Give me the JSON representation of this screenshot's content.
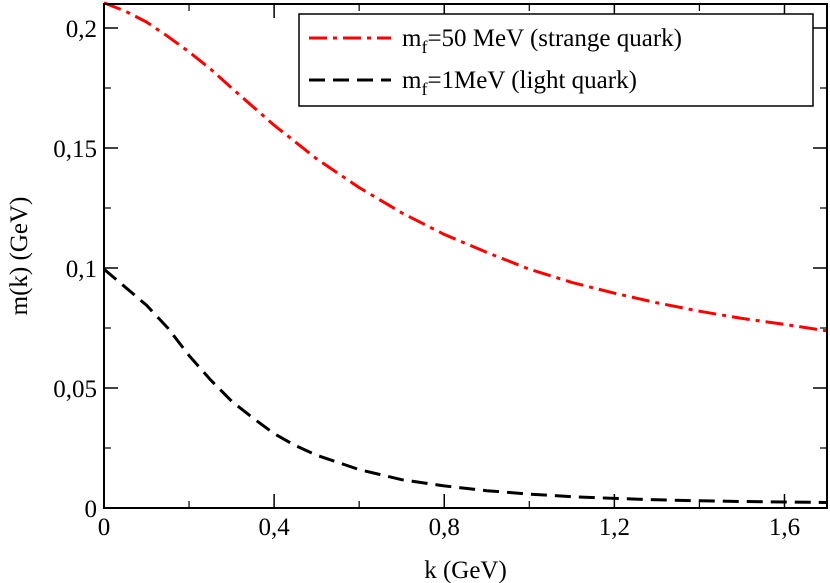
{
  "chart_data": {
    "type": "line",
    "title": "",
    "xlabel": "k (GeV)",
    "ylabel": "m(k) (GeV)",
    "xlim": [
      0,
      1.7
    ],
    "ylim": [
      0,
      0.21
    ],
    "x_ticks": [
      0,
      0.4,
      0.8,
      1.2,
      1.6
    ],
    "x_tick_labels": [
      "0",
      "0,4",
      "0,8",
      "1,2",
      "1,6"
    ],
    "y_ticks": [
      0,
      0.05,
      0.1,
      0.15,
      0.2
    ],
    "y_tick_labels": [
      "0",
      "0,05",
      "0,1",
      "0,15",
      "0,2"
    ],
    "grid": false,
    "legend_position": "top-right",
    "series": [
      {
        "name": "m_f=50 MeV (strange quark)",
        "legend_main": "m",
        "legend_sub": "f",
        "legend_rest": "=50 MeV (strange quark)",
        "color": "#ff0000",
        "style": "dashdot",
        "x": [
          0,
          0.05,
          0.1,
          0.15,
          0.2,
          0.25,
          0.3,
          0.4,
          0.5,
          0.6,
          0.7,
          0.8,
          0.9,
          1.0,
          1.1,
          1.2,
          1.3,
          1.4,
          1.5,
          1.6,
          1.7
        ],
        "y": [
          0.2105,
          0.207,
          0.2025,
          0.1965,
          0.19,
          0.183,
          0.175,
          0.1595,
          0.1455,
          0.1335,
          0.123,
          0.114,
          0.1065,
          0.0995,
          0.094,
          0.0895,
          0.0855,
          0.082,
          0.079,
          0.0765,
          0.0738
        ]
      },
      {
        "name": "m_f=1MeV (light quark)",
        "legend_main": "m",
        "legend_sub": "f",
        "legend_rest": "=1MeV (light quark)",
        "color": "#000000",
        "style": "dashed",
        "x": [
          0,
          0.02,
          0.05,
          0.1,
          0.15,
          0.2,
          0.25,
          0.3,
          0.35,
          0.4,
          0.45,
          0.5,
          0.6,
          0.7,
          0.8,
          0.9,
          1.0,
          1.1,
          1.2,
          1.3,
          1.4,
          1.5,
          1.6,
          1.7
        ],
        "y": [
          0.0995,
          0.0965,
          0.092,
          0.0845,
          0.075,
          0.0635,
          0.0535,
          0.0445,
          0.0375,
          0.031,
          0.026,
          0.022,
          0.016,
          0.0118,
          0.0092,
          0.0072,
          0.0058,
          0.0047,
          0.004,
          0.0034,
          0.003,
          0.0027,
          0.0025,
          0.0023
        ]
      }
    ]
  }
}
